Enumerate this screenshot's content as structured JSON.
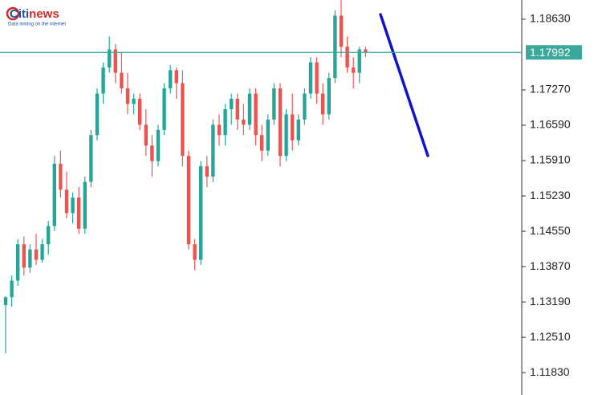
{
  "chart_data": {
    "type": "candlestick",
    "logo": {
      "brand": "Citi",
      "brand_accent": "news",
      "tagline": "Data mining on the internet"
    },
    "open": [
      1.1313,
      1.1328,
      1.136,
      1.143,
      1.1385,
      1.142,
      1.14,
      1.143,
      1.1465,
      1.1585,
      1.1535,
      1.149,
      1.152,
      1.146,
      1.155,
      1.164,
      1.172,
      1.177,
      1.1805,
      1.176,
      1.173,
      1.17,
      1.171,
      1.166,
      1.162,
      1.159,
      1.165,
      1.173,
      1.1765,
      1.174,
      1.16,
      1.143,
      1.14,
      1.158,
      1.156,
      1.166,
      1.164,
      1.169,
      1.171,
      1.167,
      1.166,
      1.172,
      1.164,
      1.161,
      1.167,
      1.173,
      1.16,
      1.168,
      1.163,
      1.167,
      1.172,
      1.178,
      1.172,
      1.168,
      1.175,
      1.187,
      1.181,
      1.177,
      1.176,
      1.1805
    ],
    "high": [
      1.133,
      1.137,
      1.144,
      1.1445,
      1.143,
      1.145,
      1.144,
      1.1475,
      1.16,
      1.161,
      1.157,
      1.153,
      1.154,
      1.156,
      1.165,
      1.173,
      1.178,
      1.183,
      1.1815,
      1.18,
      1.176,
      1.172,
      1.172,
      1.169,
      1.164,
      1.166,
      1.174,
      1.1775,
      1.177,
      1.1765,
      1.161,
      1.144,
      1.159,
      1.16,
      1.167,
      1.168,
      1.17,
      1.172,
      1.172,
      1.17,
      1.173,
      1.173,
      1.166,
      1.168,
      1.174,
      1.174,
      1.169,
      1.172,
      1.168,
      1.173,
      1.179,
      1.179,
      1.174,
      1.176,
      1.188,
      1.1905,
      1.183,
      1.179,
      1.181,
      1.181
    ],
    "low": [
      1.122,
      1.131,
      1.135,
      1.137,
      1.1375,
      1.139,
      1.1395,
      1.141,
      1.1455,
      1.152,
      1.148,
      1.147,
      1.145,
      1.145,
      1.154,
      1.163,
      1.17,
      1.176,
      1.174,
      1.172,
      1.168,
      1.168,
      1.165,
      1.16,
      1.156,
      1.158,
      1.164,
      1.172,
      1.171,
      1.158,
      1.142,
      1.138,
      1.139,
      1.154,
      1.155,
      1.162,
      1.162,
      1.166,
      1.165,
      1.164,
      1.165,
      1.162,
      1.159,
      1.16,
      1.166,
      1.158,
      1.159,
      1.161,
      1.162,
      1.166,
      1.171,
      1.17,
      1.166,
      1.167,
      1.174,
      1.179,
      1.176,
      1.173,
      1.174,
      1.179
    ],
    "close": [
      1.1328,
      1.136,
      1.143,
      1.1385,
      1.142,
      1.14,
      1.143,
      1.1465,
      1.1585,
      1.1535,
      1.149,
      1.152,
      1.146,
      1.155,
      1.164,
      1.172,
      1.177,
      1.1805,
      1.176,
      1.173,
      1.17,
      1.171,
      1.166,
      1.162,
      1.159,
      1.165,
      1.173,
      1.1765,
      1.174,
      1.16,
      1.143,
      1.14,
      1.158,
      1.156,
      1.166,
      1.164,
      1.169,
      1.171,
      1.167,
      1.166,
      1.172,
      1.164,
      1.161,
      1.167,
      1.173,
      1.16,
      1.168,
      1.163,
      1.167,
      1.172,
      1.178,
      1.172,
      1.168,
      1.175,
      1.187,
      1.181,
      1.177,
      1.176,
      1.1805,
      1.17992
    ],
    "up_color": "#26a69a",
    "down_color": "#ef5350",
    "ylim": [
      1.114,
      1.19
    ],
    "yticks": [
      {
        "value": 1.1863,
        "label": "1.18630"
      },
      {
        "value": 1.1727,
        "label": "1.17270"
      },
      {
        "value": 1.1659,
        "label": "1.16590"
      },
      {
        "value": 1.1591,
        "label": "1.15910"
      },
      {
        "value": 1.1523,
        "label": "1.15230"
      },
      {
        "value": 1.1455,
        "label": "1.14550"
      },
      {
        "value": 1.1387,
        "label": "1.13870"
      },
      {
        "value": 1.1319,
        "label": "1.13190"
      },
      {
        "value": 1.1251,
        "label": "1.12510"
      },
      {
        "value": 1.1183,
        "label": "1.11830"
      }
    ],
    "current_price": {
      "value": 1.17992,
      "label": "1.17992"
    },
    "current_price_color": "#3aa89a"
  }
}
